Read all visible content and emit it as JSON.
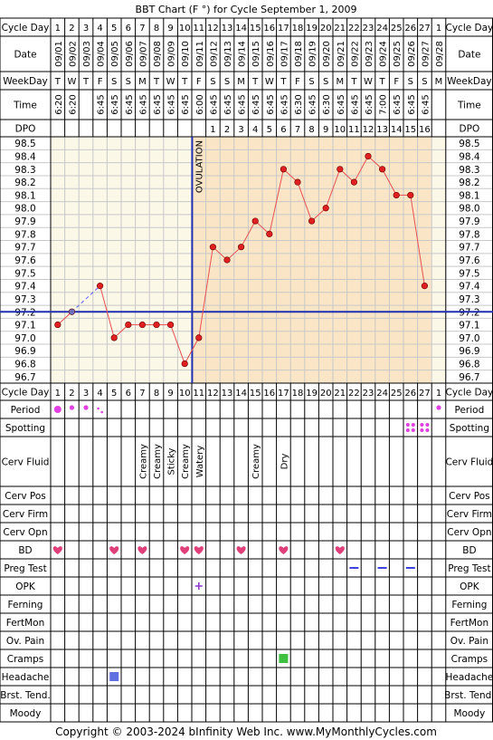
{
  "title": "BBT Chart (F °) for Cycle September 1, 2009",
  "footer": "Copyright © 2003-2024 bInfinity Web Inc.    www.MyMonthlyCycles.com",
  "ovulation_label": "OVULATION",
  "row_labels": {
    "cycle_day": "Cycle Day",
    "date": "Date",
    "weekday": "WeekDay",
    "time": "Time",
    "dpo": "DPO",
    "period": "Period",
    "spotting": "Spotting",
    "cerv_fluid": "Cerv Fluid",
    "cerv_pos": "Cerv Pos",
    "cerv_firm": "Cerv Firm",
    "cerv_opn": "Cerv Opn",
    "bd": "BD",
    "preg_test": "Preg Test",
    "opk": "OPK",
    "ferning": "Ferning",
    "fertmon": "FertMon",
    "ov_pain": "Ov. Pain",
    "cramps": "Cramps",
    "headache": "Headache",
    "brst_tend": "Brst. Tend.",
    "moody": "Moody"
  },
  "columns": {
    "cycle_day": [
      "1",
      "2",
      "3",
      "4",
      "5",
      "6",
      "7",
      "8",
      "9",
      "10",
      "11",
      "12",
      "13",
      "14",
      "15",
      "16",
      "17",
      "18",
      "19",
      "20",
      "21",
      "22",
      "23",
      "24",
      "25",
      "26",
      "27",
      "1"
    ],
    "date": [
      "09/01",
      "09/02",
      "09/03",
      "09/04",
      "09/05",
      "09/06",
      "09/07",
      "09/08",
      "09/09",
      "09/10",
      "09/11",
      "09/12",
      "09/13",
      "09/14",
      "09/15",
      "09/16",
      "09/17",
      "09/18",
      "09/19",
      "09/20",
      "09/21",
      "09/22",
      "09/23",
      "09/24",
      "09/25",
      "09/26",
      "09/27",
      "09/28"
    ],
    "weekday": [
      "T",
      "W",
      "T",
      "F",
      "S",
      "S",
      "M",
      "T",
      "W",
      "T",
      "F",
      "S",
      "S",
      "M",
      "T",
      "W",
      "T",
      "F",
      "S",
      "S",
      "M",
      "T",
      "W",
      "T",
      "F",
      "S",
      "S",
      "M"
    ],
    "time": [
      "6:20",
      "6:20",
      "",
      "6:45",
      "6:45",
      "6:45",
      "6:45",
      "6:45",
      "6:45",
      "6:45",
      "6:00",
      "6:45",
      "6:45",
      "6:45",
      "6:45",
      "6:45",
      "6:45",
      "6:30",
      "6:45",
      "6:30",
      "6:45",
      "6:45",
      "6:45",
      "7:00",
      "6:45",
      "6:45",
      "6:45",
      ""
    ],
    "dpo": [
      "",
      "",
      "",
      "",
      "",
      "",
      "",
      "",
      "",
      "",
      "",
      "1",
      "2",
      "3",
      "4",
      "5",
      "6",
      "7",
      "8",
      "9",
      "10",
      "11",
      "12",
      "13",
      "14",
      "15",
      "16",
      ""
    ],
    "cerv_fluid": [
      "",
      "",
      "",
      "",
      "",
      "",
      "Creamy",
      "Creamy",
      "Sticky",
      "Creamy",
      "Watery",
      "",
      "",
      "",
      "Creamy",
      "",
      "Dry",
      "",
      "",
      "",
      "",
      "",
      "",
      "",
      "",
      "",
      "",
      ""
    ]
  },
  "colors": {
    "pre_ov_bg": "#fbf8e8",
    "post_ov_bg": "#fae6c6",
    "grid": "#c8c8c8",
    "temp_line": "#e85050",
    "temp_point": "#e02020",
    "ovulation_line": "#1f2fb0",
    "coverline": "#1f2fb0",
    "period": "#e040e0",
    "bd": "#e0407a",
    "preg_test": "#4040e0",
    "opk": "#9040d0",
    "cramps": "#40c040",
    "headache": "#6070e0"
  },
  "icons": {
    "period": "dot-icon",
    "spotting": "dots-icon",
    "bd": "heart-icon",
    "preg_test": "dash-icon",
    "opk": "plus-icon",
    "cramps": "square-icon",
    "headache": "square-icon"
  },
  "chart_data": {
    "type": "line",
    "title": "BBT Chart (F °) for Cycle September 1, 2009",
    "xlabel": "Cycle Day",
    "ylabel": "",
    "ylim": [
      96.7,
      98.5
    ],
    "y_ticks": [
      "98.5",
      "98.4",
      "98.3",
      "98.2",
      "98.1",
      "98.0",
      "97.9",
      "97.8",
      "97.7",
      "97.6",
      "97.5",
      "97.4",
      "97.3",
      "97.2",
      "97.1",
      "97.0",
      "96.9",
      "96.8",
      "96.7"
    ],
    "x": [
      1,
      2,
      3,
      4,
      5,
      6,
      7,
      8,
      9,
      10,
      11,
      12,
      13,
      14,
      15,
      16,
      17,
      18,
      19,
      20,
      21,
      22,
      23,
      24,
      25,
      26,
      27,
      28
    ],
    "series": [
      {
        "values": [
          97.1,
          97.2,
          null,
          97.4,
          97.0,
          97.1,
          97.1,
          97.1,
          97.1,
          96.8,
          97.0,
          97.7,
          97.6,
          97.7,
          97.9,
          97.8,
          98.3,
          98.2,
          97.9,
          98.0,
          98.3,
          98.2,
          98.4,
          98.3,
          98.1,
          98.1,
          97.4,
          null
        ]
      }
    ],
    "coverline": 97.2,
    "ovulation_after_day": 10,
    "grid": true
  },
  "symptoms": {
    "period": {
      "1": "heavy",
      "2": "medium",
      "3": "medium",
      "4": "light",
      "28": "medium"
    },
    "spotting": [
      "26",
      "27"
    ],
    "bd": [
      "1",
      "5",
      "7",
      "10",
      "11",
      "14",
      "17",
      "21"
    ],
    "preg_test": [
      "22",
      "24",
      "26"
    ],
    "opk": [
      "11"
    ],
    "cramps": [
      "17"
    ],
    "headache": [
      "5"
    ]
  }
}
